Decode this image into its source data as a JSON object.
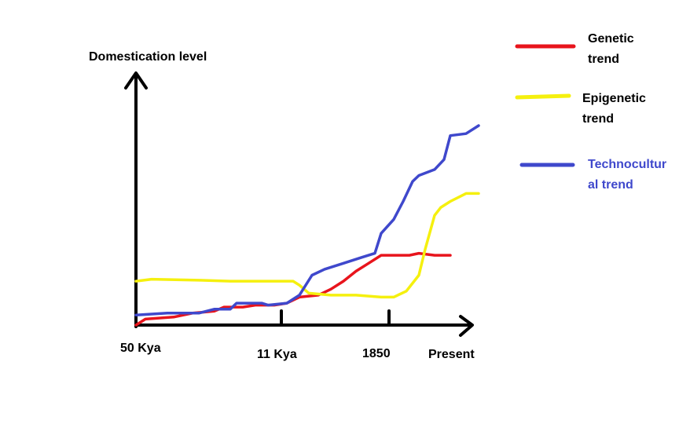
{
  "chart_data": {
    "type": "line",
    "title": "",
    "ylabel": "Domestication level",
    "xlabel": "",
    "x_ticks": [
      "50 Kya",
      "11 Kya",
      "1850",
      "Present"
    ],
    "ylim": [
      0,
      10
    ],
    "grid": false,
    "legend_position": "right",
    "series": [
      {
        "name_lines": [
          "Genetic",
          "trend"
        ],
        "color": "#e8141c",
        "points": [
          [
            0.0,
            0.0
          ],
          [
            0.03,
            0.3
          ],
          [
            0.12,
            0.4
          ],
          [
            0.18,
            0.6
          ],
          [
            0.25,
            0.7
          ],
          [
            0.28,
            0.9
          ],
          [
            0.34,
            0.9
          ],
          [
            0.38,
            1.0
          ],
          [
            0.44,
            1.0
          ],
          [
            0.48,
            1.1
          ],
          [
            0.52,
            1.4
          ],
          [
            0.58,
            1.5
          ],
          [
            0.62,
            1.8
          ],
          [
            0.66,
            2.2
          ],
          [
            0.7,
            2.7
          ],
          [
            0.74,
            3.1
          ],
          [
            0.78,
            3.5
          ],
          [
            0.82,
            3.5
          ],
          [
            0.87,
            3.5
          ],
          [
            0.9,
            3.6
          ],
          [
            0.95,
            3.5
          ],
          [
            1.0,
            3.5
          ]
        ]
      },
      {
        "name_lines": [
          "Epigenetic",
          "trend"
        ],
        "color": "#f5f00e",
        "points": [
          [
            0.0,
            2.2
          ],
          [
            0.05,
            2.3
          ],
          [
            0.2,
            2.25
          ],
          [
            0.3,
            2.2
          ],
          [
            0.45,
            2.2
          ],
          [
            0.5,
            2.2
          ],
          [
            0.52,
            2.0
          ],
          [
            0.55,
            1.6
          ],
          [
            0.62,
            1.5
          ],
          [
            0.7,
            1.5
          ],
          [
            0.78,
            1.4
          ],
          [
            0.82,
            1.4
          ],
          [
            0.86,
            1.7
          ],
          [
            0.9,
            2.5
          ],
          [
            0.92,
            3.8
          ],
          [
            0.95,
            5.5
          ],
          [
            0.97,
            5.9
          ],
          [
            1.0,
            6.2
          ],
          [
            1.05,
            6.6
          ],
          [
            1.09,
            6.6
          ]
        ]
      },
      {
        "name_lines": [
          "Technocultur",
          "al trend"
        ],
        "color": "#3f48cc",
        "points": [
          [
            0.0,
            0.5
          ],
          [
            0.1,
            0.6
          ],
          [
            0.2,
            0.6
          ],
          [
            0.25,
            0.8
          ],
          [
            0.3,
            0.8
          ],
          [
            0.32,
            1.1
          ],
          [
            0.4,
            1.1
          ],
          [
            0.42,
            1.0
          ],
          [
            0.48,
            1.1
          ],
          [
            0.52,
            1.5
          ],
          [
            0.56,
            2.5
          ],
          [
            0.6,
            2.8
          ],
          [
            0.66,
            3.1
          ],
          [
            0.72,
            3.4
          ],
          [
            0.76,
            3.6
          ],
          [
            0.78,
            4.6
          ],
          [
            0.82,
            5.3
          ],
          [
            0.85,
            6.2
          ],
          [
            0.88,
            7.2
          ],
          [
            0.9,
            7.5
          ],
          [
            0.95,
            7.8
          ],
          [
            0.98,
            8.3
          ],
          [
            1.0,
            9.5
          ],
          [
            1.05,
            9.6
          ],
          [
            1.09,
            10.0
          ]
        ]
      }
    ]
  }
}
